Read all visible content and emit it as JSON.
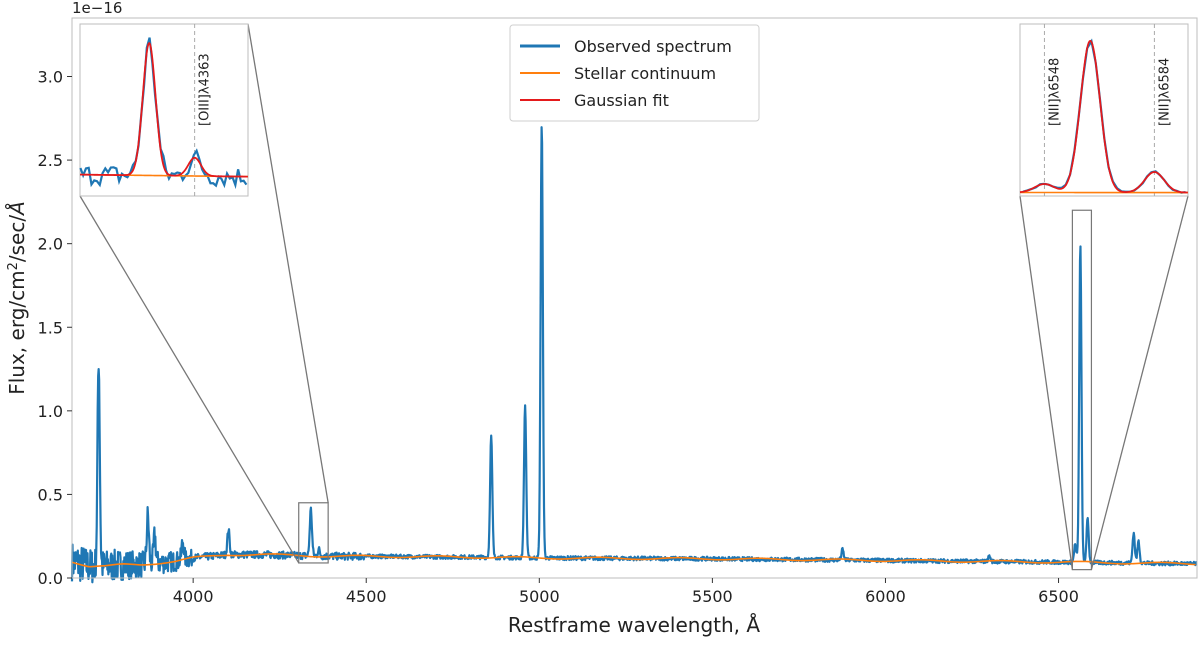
{
  "chart_data": {
    "type": "line",
    "xlabel": "Restframe wavelength, Å",
    "ylabel_parts": [
      "Flux, erg/cm",
      "2",
      "/sec/",
      "Å"
    ],
    "y_offset_label": "1e−16",
    "xlim": [
      3650,
      6900
    ],
    "ylim": [
      0.0,
      3.35
    ],
    "y_scale_factor": 1e-16,
    "x_ticks": [
      4000,
      4500,
      5000,
      5500,
      6000,
      6500
    ],
    "y_ticks": [
      0.0,
      0.5,
      1.0,
      1.5,
      2.0,
      2.5,
      3.0
    ],
    "x_tick_labels": [
      "4000",
      "4500",
      "5000",
      "5500",
      "6000",
      "6500"
    ],
    "y_tick_labels": [
      "0.0",
      "0.5",
      "1.0",
      "1.5",
      "2.0",
      "2.5",
      "3.0"
    ],
    "grid": false,
    "legend_position": "top-center",
    "series": [
      {
        "name": "Observed spectrum",
        "color": "#1f77b4"
      },
      {
        "name": "Stellar continuum",
        "color": "#ff7f0e"
      },
      {
        "name": "Gaussian fit",
        "color": "#e41a1c"
      }
    ],
    "continuum": {
      "x": [
        3650,
        3700,
        3750,
        3800,
        3850,
        3900,
        3950,
        4000,
        4050,
        4100,
        4200,
        4300,
        4400,
        4500,
        4800,
        5000,
        5500,
        6000,
        6500,
        6900
      ],
      "y": [
        0.1,
        0.07,
        0.07,
        0.08,
        0.08,
        0.09,
        0.1,
        0.12,
        0.13,
        0.14,
        0.14,
        0.135,
        0.13,
        0.13,
        0.125,
        0.12,
        0.115,
        0.105,
        0.095,
        0.085
      ]
    },
    "emission_lines": [
      {
        "x": 3727,
        "peak": 1.32
      },
      {
        "x": 3869,
        "peak": 0.37
      },
      {
        "x": 3889,
        "peak": 0.25
      },
      {
        "x": 3970,
        "peak": 0.22
      },
      {
        "x": 4102,
        "peak": 0.29
      },
      {
        "x": 4340,
        "peak": 0.41
      },
      {
        "x": 4363,
        "peak": 0.17
      },
      {
        "x": 4861,
        "peak": 0.85
      },
      {
        "x": 4959,
        "peak": 1.03
      },
      {
        "x": 5007,
        "peak": 2.72
      },
      {
        "x": 5876,
        "peak": 0.17
      },
      {
        "x": 6300,
        "peak": 0.13
      },
      {
        "x": 6548,
        "peak": 0.2
      },
      {
        "x": 6563,
        "peak": 1.99
      },
      {
        "x": 6584,
        "peak": 0.35
      },
      {
        "x": 6717,
        "peak": 0.27
      },
      {
        "x": 6731,
        "peak": 0.22
      }
    ],
    "insets": [
      {
        "label": "[OIII]λ4363",
        "zoom_xlim": [
          4305,
          4390
        ],
        "zoom_ylim": [
          0.09,
          0.45
        ],
        "marker_x": 4363,
        "line_peaks": [
          {
            "x": 4340,
            "peak": 0.41
          },
          {
            "x": 4363,
            "peak": 0.17
          }
        ]
      },
      {
        "labels": [
          "[NII]λ6548",
          "[NII]λ6584"
        ],
        "zoom_xlim": [
          6540,
          6595
        ],
        "zoom_ylim": [
          0.05,
          2.2
        ],
        "marker_x": [
          6548,
          6584
        ],
        "line_peaks": [
          {
            "x": 6563,
            "peak": 1.99
          },
          {
            "x": 6584,
            "peak": 0.35
          },
          {
            "x": 6548,
            "peak": 0.2
          }
        ]
      }
    ]
  }
}
